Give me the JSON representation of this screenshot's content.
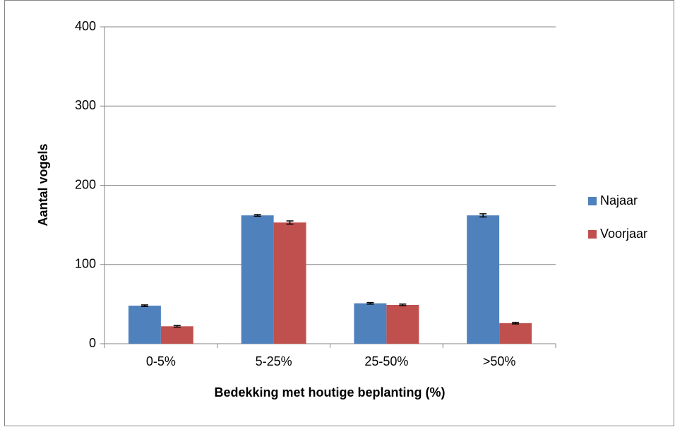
{
  "chart_data": {
    "type": "bar",
    "categories": [
      "0-5%",
      "5-25%",
      "25-50%",
      ">50%"
    ],
    "series": [
      {
        "name": "Najaar",
        "color": "#4f81bd",
        "values": [
          48,
          162,
          51,
          162
        ],
        "errors": [
          1,
          1,
          1,
          2
        ]
      },
      {
        "name": "Voorjaar",
        "color": "#c0504d",
        "values": [
          22,
          153,
          49,
          26
        ],
        "errors": [
          1,
          2,
          1,
          1
        ]
      }
    ],
    "xlabel": "Bedekking met houtige beplanting (%)",
    "ylabel": "Aantal vogels",
    "ylim": [
      0,
      400
    ],
    "yticks": [
      0,
      100,
      200,
      300,
      400
    ],
    "grid": true,
    "legend": "right"
  }
}
